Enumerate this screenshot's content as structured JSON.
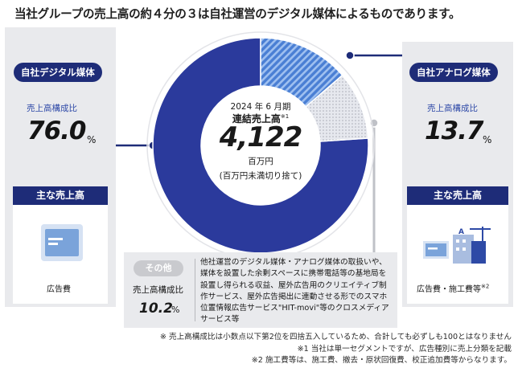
{
  "headline": "当社グループの売上高の約４分の３は自社運営のデジタル媒体によるものであります。",
  "left": {
    "title": "自社デジタル媒体",
    "ratio_label": "売上高構成比",
    "pct": "76.0",
    "unit": "%",
    "main_sales_label": "主な売上高",
    "item_label": "広告費",
    "icon": "billboard-screen-icon"
  },
  "right": {
    "title": "自社アナログ媒体",
    "ratio_label": "売上高構成比",
    "pct": "13.7",
    "unit": "%",
    "main_sales_label": "主な売上高",
    "item_label": "広告費・施工費等",
    "item_note": "※2",
    "icon": "buildings-construction-icon"
  },
  "center": {
    "period": "2024 年 6 月期",
    "title": "連結売上高",
    "title_note": "※1",
    "value": "4,122",
    "unit": "百万円",
    "rounding": "(百万円未満切り捨て)"
  },
  "other": {
    "title": "その他",
    "ratio_label": "売上高構成比",
    "pct": "10.2",
    "unit": "%",
    "description": "他社運営のデジタル媒体・アナログ媒体の取扱いや、媒体を設置した余剰スペースに携帯電話等の基地局を設置し得られる収益、屋外広告用のクリエイティブ制作サービス、屋外広告掲出に連動させる形でのスマホ位置情報広告サービス\"HIT-movi\"等のクロスメディアサービス等"
  },
  "notes": [
    "※ 売上高構成比は小数点以下第2位を四捨五入しているため、合計しても必ずしも100とはなりません",
    "※1 当社は単一セグメントですが、広告種別に売上分類を記載",
    "※2 施工費等は、施工費、撤去・原状回復費、校正追加費等からなります。"
  ],
  "colors": {
    "navy": "#1e2c78",
    "digital": "#2b3a9c",
    "analog": "#4a7fd4",
    "other": "#c9cbd2",
    "panel": "#e9eaed"
  },
  "chart_data": {
    "type": "pie",
    "title": "連結売上高",
    "categories": [
      "自社デジタル媒体",
      "自社アナログ媒体",
      "その他"
    ],
    "values": [
      76.0,
      13.7,
      10.2
    ],
    "unit": "%",
    "total": 4122,
    "total_unit": "百万円"
  }
}
